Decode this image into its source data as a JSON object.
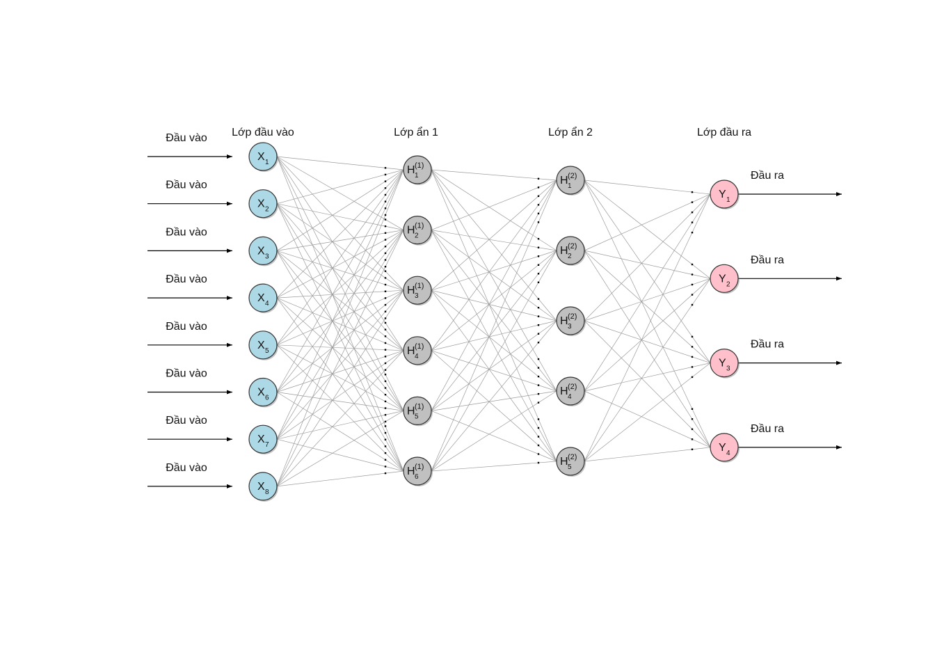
{
  "layers": [
    {
      "title": "Lớp đầu vào",
      "kind": "input",
      "color": "#add8e6",
      "nodes": [
        {
          "main": "X",
          "sub": "1"
        },
        {
          "main": "X",
          "sub": "2"
        },
        {
          "main": "X",
          "sub": "3"
        },
        {
          "main": "X",
          "sub": "4"
        },
        {
          "main": "X",
          "sub": "5"
        },
        {
          "main": "X",
          "sub": "6"
        },
        {
          "main": "X",
          "sub": "7"
        },
        {
          "main": "X",
          "sub": "8"
        }
      ]
    },
    {
      "title": "Lớp ẩn 1",
      "kind": "hidden",
      "color": "#c0c0c0",
      "nodes": [
        {
          "main": "H",
          "sub": "1",
          "sup": "(1)"
        },
        {
          "main": "H",
          "sub": "2",
          "sup": "(1)"
        },
        {
          "main": "H",
          "sub": "3",
          "sup": "(1)"
        },
        {
          "main": "H",
          "sub": "4",
          "sup": "(1)"
        },
        {
          "main": "H",
          "sub": "5",
          "sup": "(1)"
        },
        {
          "main": "H",
          "sub": "6",
          "sup": "(1)"
        }
      ]
    },
    {
      "title": "Lớp ẩn 2",
      "kind": "hidden",
      "color": "#c0c0c0",
      "nodes": [
        {
          "main": "H",
          "sub": "1",
          "sup": "(2)"
        },
        {
          "main": "H",
          "sub": "2",
          "sup": "(2)"
        },
        {
          "main": "H",
          "sub": "3",
          "sup": "(2)"
        },
        {
          "main": "H",
          "sub": "4",
          "sup": "(2)"
        },
        {
          "main": "H",
          "sub": "5",
          "sup": "(2)"
        }
      ]
    },
    {
      "title": "Lớp đầu ra",
      "kind": "output",
      "color": "#ffc0cb",
      "nodes": [
        {
          "main": "Y",
          "sub": "1"
        },
        {
          "main": "Y",
          "sub": "2"
        },
        {
          "main": "Y",
          "sub": "3"
        },
        {
          "main": "Y",
          "sub": "4"
        }
      ]
    }
  ],
  "input_labels": [
    "Đầu vào",
    "Đầu vào",
    "Đầu vào",
    "Đầu vào",
    "Đầu vào",
    "Đầu vào",
    "Đầu vào",
    "Đầu vào"
  ],
  "output_labels": [
    "Đầu ra",
    "Đầu ra",
    "Đầu ra",
    "Đầu ra"
  ]
}
